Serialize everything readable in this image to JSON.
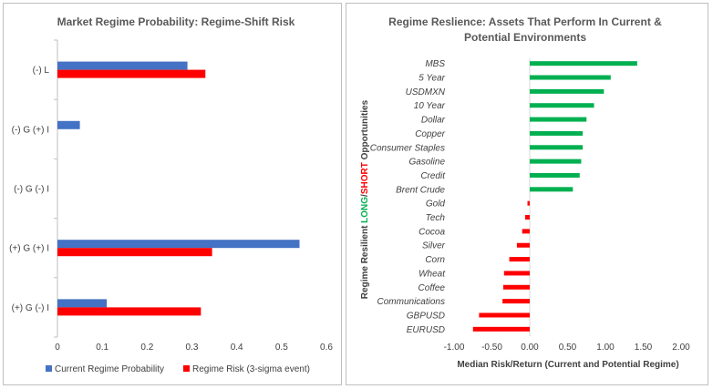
{
  "chart_data": [
    {
      "type": "bar",
      "orientation": "horizontal",
      "title": "Market Regime Probability: Regime-Shift Risk",
      "categories": [
        "(-) L",
        "(-) G (+) I",
        "(-) G (-) I",
        "(+) G (+) I",
        "(+) G (-) I"
      ],
      "series": [
        {
          "name": "Current Regime Probability",
          "color": "#4472c4",
          "values": [
            0.29,
            0.05,
            0.0,
            0.54,
            0.11
          ]
        },
        {
          "name": "Regime Risk (3-sigma event)",
          "color": "#ff0000",
          "values": [
            0.33,
            0.0,
            0.0,
            0.345,
            0.32
          ]
        }
      ],
      "xlim": [
        0,
        0.6
      ],
      "xticks": [
        "0",
        "0.1",
        "0.2",
        "0.3",
        "0.4",
        "0.5",
        "0.6"
      ],
      "legend": "bottom",
      "grid": false
    },
    {
      "type": "bar",
      "orientation": "horizontal",
      "title_line1": "Regime Reslience: Assets That Perform In Current &",
      "title_line2": "Potential Environments",
      "xlabel": "Median Risk/Return (Current and Potential Regime)",
      "ylabel_prefix": "Regime Resilient ",
      "ylabel_long": "LONG",
      "ylabel_sep": "/",
      "ylabel_short": "SHORT",
      "ylabel_suffix": " Opportunities",
      "positive_color": "#00b050",
      "negative_color": "#ff0000",
      "categories": [
        "MBS",
        "5 Year",
        "USDMXN",
        "10 Year",
        "Dollar",
        "Copper",
        "Consumer Staples",
        "Gasoline",
        "Credit",
        "Brent Crude",
        "Gold",
        "Tech",
        "Cocoa",
        "Silver",
        "Corn",
        "Wheat",
        "Coffee",
        "Communications",
        "GBPUSD",
        "EURUSD"
      ],
      "values": [
        1.42,
        1.07,
        0.98,
        0.85,
        0.75,
        0.7,
        0.7,
        0.68,
        0.66,
        0.57,
        -0.03,
        -0.06,
        -0.1,
        -0.17,
        -0.27,
        -0.34,
        -0.35,
        -0.36,
        -0.67,
        -0.75
      ],
      "xlim": [
        -1.0,
        2.0
      ],
      "xticks": [
        "-1.00",
        "-0.50",
        "0.00",
        "0.50",
        "1.00",
        "1.50",
        "2.00"
      ],
      "grid": false
    }
  ]
}
